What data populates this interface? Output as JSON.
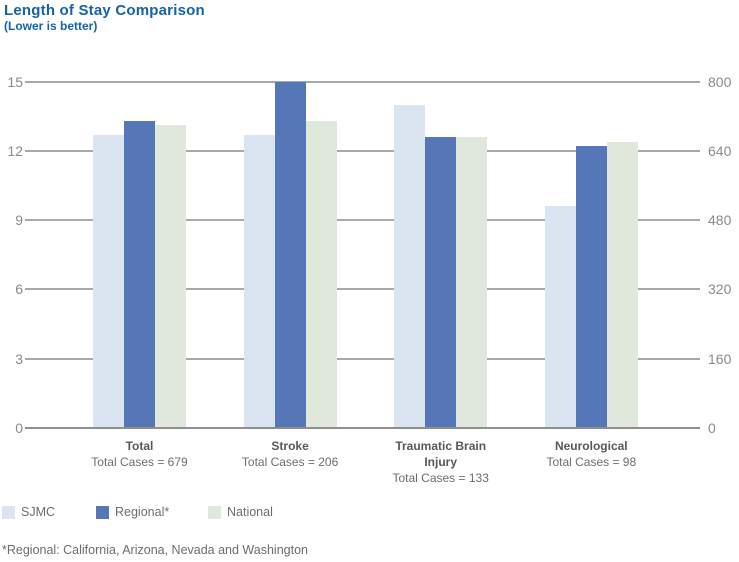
{
  "header": {
    "title": "Length of Stay Comparison",
    "subtitle": "(Lower is better)"
  },
  "chart_data": {
    "type": "bar",
    "title": "Length of Stay Comparison",
    "subtitle": "(Lower is better)",
    "categories": [
      {
        "name": "Total",
        "cases_label": "Total Cases = 679"
      },
      {
        "name": "Stroke",
        "cases_label": "Total Cases = 206"
      },
      {
        "name": "Traumatic Brain Injury",
        "cases_label": "Total Cases = 133"
      },
      {
        "name": "Neurological",
        "cases_label": "Total Cases = 98"
      }
    ],
    "series": [
      {
        "name": "SJMC",
        "color": "#dbe5f1",
        "values": [
          12.7,
          12.7,
          14.0,
          9.6
        ]
      },
      {
        "name": "Regional*",
        "color": "#5577b7",
        "values": [
          13.3,
          15.0,
          12.6,
          12.2
        ]
      },
      {
        "name": "National",
        "color": "#dfe8da",
        "values": [
          13.1,
          13.3,
          12.6,
          12.4
        ]
      }
    ],
    "left_axis": {
      "min": 0,
      "max": 15,
      "ticks": [
        0,
        3,
        6,
        9,
        12,
        15
      ]
    },
    "right_axis": {
      "min": 0,
      "max": 800,
      "ticks": [
        0,
        160,
        320,
        480,
        640,
        800
      ]
    },
    "grid": true,
    "legend_position": "bottom-left"
  },
  "footnote": "*Regional: California, Arizona, Nevada and Washington",
  "colors": {
    "title_blue": "#1562a8",
    "sjmc": "#dbe5f1",
    "regional": "#5577b7",
    "national": "#dfe8da",
    "gridline": "#a9a9a9",
    "axis_text": "#8a8a8a",
    "label_text": "#6d6d6d"
  }
}
